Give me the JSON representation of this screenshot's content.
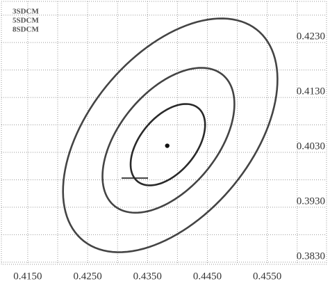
{
  "chart_data": {
    "type": "ellipse",
    "series": [
      {
        "name": "3SDCM",
        "color": "#2a2a2a",
        "center": [
          0.4384,
          0.4044
        ],
        "semi_axes": [
          0.0084,
          0.0048
        ],
        "angle": 55
      },
      {
        "name": "5SDCM",
        "color": "#444444",
        "center": [
          0.4385,
          0.4052
        ],
        "semi_axes": [
          0.015,
          0.0084
        ],
        "angle": 55
      },
      {
        "name": "8SDCM",
        "color": "#444444",
        "center": [
          0.4388,
          0.4061
        ],
        "semi_axes": [
          0.0241,
          0.0139
        ],
        "angle": 55
      }
    ],
    "point": [
      0.4383,
      0.4042
    ],
    "xlim": [
      0.4106,
      0.4649
    ],
    "ylim": [
      0.3826,
      0.4305
    ],
    "xticks": [
      {
        "value": 0.415,
        "label": "0.4150"
      },
      {
        "value": 0.425,
        "label": "0.4250"
      },
      {
        "value": 0.435,
        "label": "0.4350"
      },
      {
        "value": 0.445,
        "label": "0.4450"
      },
      {
        "value": 0.455,
        "label": "0.4550"
      }
    ],
    "yticks": [
      {
        "value": 0.383,
        "label": "0.3830"
      },
      {
        "value": 0.393,
        "label": "0.3930"
      },
      {
        "value": 0.403,
        "label": "0.4030"
      },
      {
        "value": 0.413,
        "label": "0.4130"
      },
      {
        "value": 0.423,
        "label": "0.4230"
      }
    ],
    "grid": true,
    "minor_grid": true,
    "legend": "top-left"
  }
}
